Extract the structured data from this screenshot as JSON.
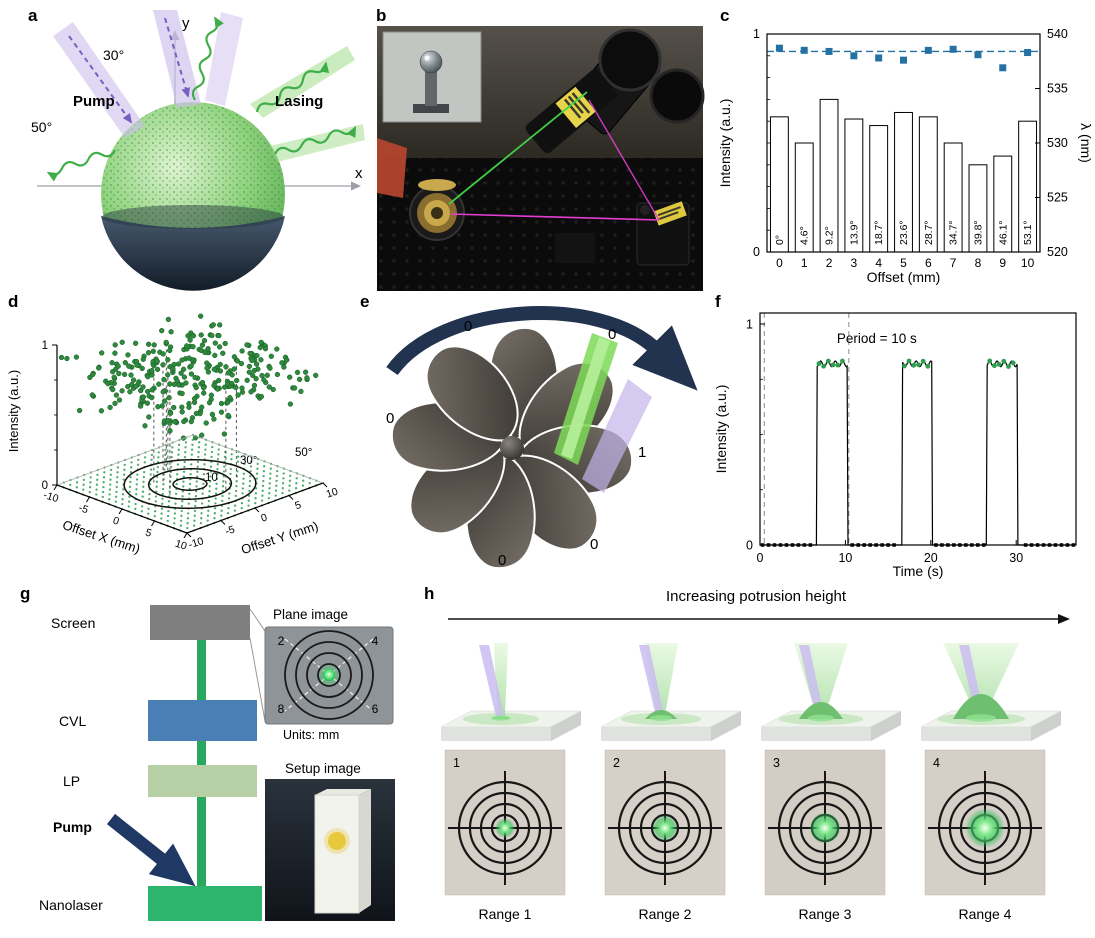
{
  "palette": {
    "marker_blue": "#2471a3",
    "laser_green": "#3fae49",
    "pump_purple": "#8c52b8",
    "navy": "#22334f"
  },
  "panels": {
    "a": {
      "label": "a",
      "axis_x": "x",
      "axis_y": "y",
      "pump": "Pump",
      "lasing": "Lasing",
      "angle_30": "30°",
      "angle_50": "50°"
    },
    "b": {
      "label": "b"
    },
    "c": {
      "label": "c"
    },
    "d": {
      "label": "d"
    },
    "e": {
      "label": "e",
      "petal_states": [
        "0",
        "0",
        "0",
        "0",
        "0"
      ],
      "active_state": "1"
    },
    "f": {
      "label": "f"
    },
    "g": {
      "label": "g",
      "screen": "Screen",
      "cvl": "CVL",
      "lp": "LP",
      "pump": "Pump",
      "nanolaser": "Nanolaser",
      "plane_image_title": "Plane image",
      "plane_numbers": {
        "top_left": "2",
        "top_right": "4",
        "bottom_left": "8",
        "bottom_right": "6"
      },
      "units_label": "Units: mm",
      "setup_image_title": "Setup image"
    },
    "h": {
      "label": "h",
      "title": "Increasing potrusion height",
      "photo_numbers": [
        "1",
        "2",
        "3",
        "4"
      ],
      "captions": [
        "Range 1",
        "Range 2",
        "Range 3",
        "Range 4"
      ]
    }
  },
  "chart_data": [
    {
      "id": "c",
      "type": "bar",
      "title": "",
      "xlabel": "Offset (mm)",
      "ylabel": "Intensity (a.u.)",
      "ylabel_right": "λ (nm)",
      "categories": [
        "0",
        "1",
        "2",
        "3",
        "4",
        "5",
        "6",
        "7",
        "8",
        "9",
        "10"
      ],
      "series": [
        {
          "name": "intensity",
          "type": "bar",
          "axis": "left",
          "values": [
            0.62,
            0.5,
            0.7,
            0.61,
            0.58,
            0.64,
            0.62,
            0.5,
            0.4,
            0.44,
            0.6
          ]
        },
        {
          "name": "wavelength_nm",
          "type": "scatter",
          "axis": "right",
          "values": [
            538.7,
            538.5,
            538.4,
            538.0,
            537.8,
            537.6,
            538.5,
            538.6,
            538.1,
            536.9,
            538.3
          ]
        }
      ],
      "bar_angle_labels": [
        "0°",
        "4.6°",
        "9.2°",
        "13.9°",
        "18.7°",
        "23.6°",
        "28.7°",
        "34.7°",
        "39.8°",
        "46.1°",
        "53.1°"
      ],
      "reference_line_right": 538.4,
      "ylim": [
        0,
        1
      ],
      "ylim_right": [
        520,
        540
      ],
      "yticks": [
        0,
        1
      ],
      "yticks_right": [
        520,
        525,
        530,
        535,
        540
      ],
      "grid": false,
      "marker_color": "#2471a3",
      "bar_fill": "#ffffff",
      "bar_stroke": "#000000"
    },
    {
      "id": "d",
      "type": "scatter",
      "xlabel": "Offset X (mm)",
      "ylabel": "Offset Y (mm)",
      "zlabel": "Intensity (a.u.)",
      "xlim": [
        -10,
        10
      ],
      "ylim": [
        -10,
        10
      ],
      "zlim": [
        0,
        1
      ],
      "xticks": [
        -10,
        -5,
        0,
        5,
        10
      ],
      "yticks": [
        -10,
        -5,
        0,
        5,
        10
      ],
      "zticks": [
        0,
        1
      ],
      "contour_labels": [
        "10",
        "30°",
        "50°"
      ],
      "contour_radii_mm": [
        1.8,
        4.4,
        7.0
      ],
      "point_count": 320,
      "intensity_range": [
        0.55,
        0.95
      ],
      "dot_color": "#2e8b3d"
    },
    {
      "id": "f",
      "type": "line",
      "xlabel": "Time (s)",
      "ylabel": "Intensity (a.u.)",
      "annotation": "Period = 10 s",
      "xlim": [
        0,
        37
      ],
      "ylim": [
        0,
        1.05
      ],
      "xticks": [
        0,
        10,
        20,
        30
      ],
      "yticks": [
        0,
        1
      ],
      "baseline_level": 0,
      "pulse_level": 0.82,
      "pulses": [
        [
          6.6,
          10.2
        ],
        [
          16.6,
          20.2
        ],
        [
          26.6,
          30.2
        ]
      ],
      "dashed_guides_x": [
        0.5,
        10.4
      ],
      "line_color": "#000000",
      "pulse_marker_color": "#2e9e4f"
    }
  ]
}
